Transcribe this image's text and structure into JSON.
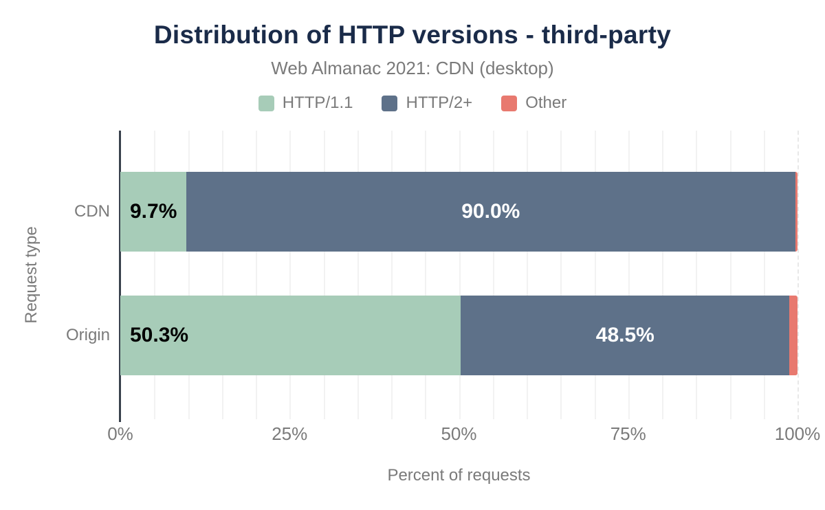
{
  "chart_data": {
    "type": "bar",
    "orientation": "horizontal-stacked",
    "title": "Distribution of HTTP versions - third-party",
    "subtitle": "Web Almanac 2021: CDN (desktop)",
    "categories": [
      "CDN",
      "Origin"
    ],
    "series": [
      {
        "name": "HTTP/1.1",
        "color": "#a7ccb8",
        "values": [
          9.7,
          50.3
        ],
        "data_labels": [
          "9.7%",
          "50.3%"
        ],
        "label_color": "#000000",
        "label_align": "left"
      },
      {
        "name": "HTTP/2+",
        "color": "#5e7189",
        "values": [
          90.0,
          48.5
        ],
        "data_labels": [
          "90.0%",
          "48.5%"
        ],
        "label_color": "#ffffff",
        "label_align": "center"
      },
      {
        "name": "Other",
        "color": "#e8796f",
        "values": [
          0.3,
          1.2
        ],
        "data_labels": [
          null,
          null
        ],
        "label_color": null,
        "label_align": null
      }
    ],
    "xlabel": "Percent of requests",
    "ylabel": "Request type",
    "xlim": [
      0,
      100
    ],
    "x_ticks": [
      {
        "value": 0,
        "label": "0%"
      },
      {
        "value": 25,
        "label": "25%"
      },
      {
        "value": 50,
        "label": "50%"
      },
      {
        "value": 75,
        "label": "75%"
      },
      {
        "value": 100,
        "label": "100%"
      }
    ],
    "gridlines": {
      "minor_step": 5,
      "on": true
    },
    "legend_position": "top",
    "colors": {
      "title": "#1a2b49",
      "text": "#7a7a7a",
      "axis": "#39414d",
      "background": "#ffffff",
      "gridline": "#f2f2f2"
    }
  }
}
